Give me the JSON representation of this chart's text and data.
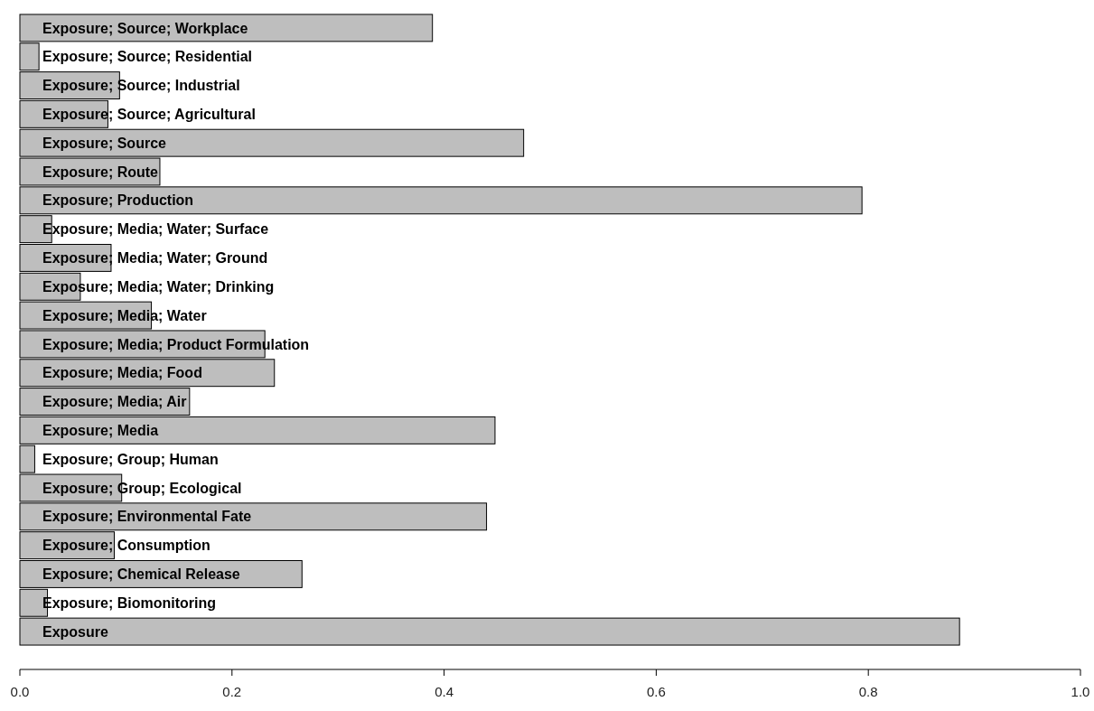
{
  "chart_data": {
    "type": "bar",
    "orientation": "horizontal",
    "categories": [
      "Exposure; Source; Workplace",
      "Exposure; Source; Residential",
      "Exposure; Source; Industrial",
      "Exposure; Source; Agricultural",
      "Exposure; Source",
      "Exposure; Route",
      "Exposure; Production",
      "Exposure; Media; Water; Surface",
      "Exposure; Media; Water; Ground",
      "Exposure; Media; Water; Drinking",
      "Exposure; Media; Water",
      "Exposure; Media; Product Formulation",
      "Exposure; Media; Food",
      "Exposure; Media; Air",
      "Exposure; Media",
      "Exposure; Group; Human",
      "Exposure; Group; Ecological",
      "Exposure; Environmental Fate",
      "Exposure; Consumption",
      "Exposure; Chemical Release",
      "Exposure; Biomonitoring",
      "Exposure"
    ],
    "values": [
      0.389,
      0.018,
      0.094,
      0.083,
      0.475,
      0.132,
      0.794,
      0.03,
      0.086,
      0.057,
      0.124,
      0.231,
      0.24,
      0.16,
      0.448,
      0.014,
      0.096,
      0.44,
      0.089,
      0.266,
      0.026,
      0.886
    ],
    "color": "#bebebe",
    "xlim": [
      0,
      1
    ],
    "xticks": [
      {
        "value": 0,
        "label": "0.0"
      },
      {
        "value": 0.2,
        "label": "0.2"
      },
      {
        "value": 0.4,
        "label": "0.4"
      },
      {
        "value": 0.6,
        "label": "0.6"
      },
      {
        "value": 0.8,
        "label": "0.8"
      },
      {
        "value": 1,
        "label": "1.0"
      }
    ]
  }
}
